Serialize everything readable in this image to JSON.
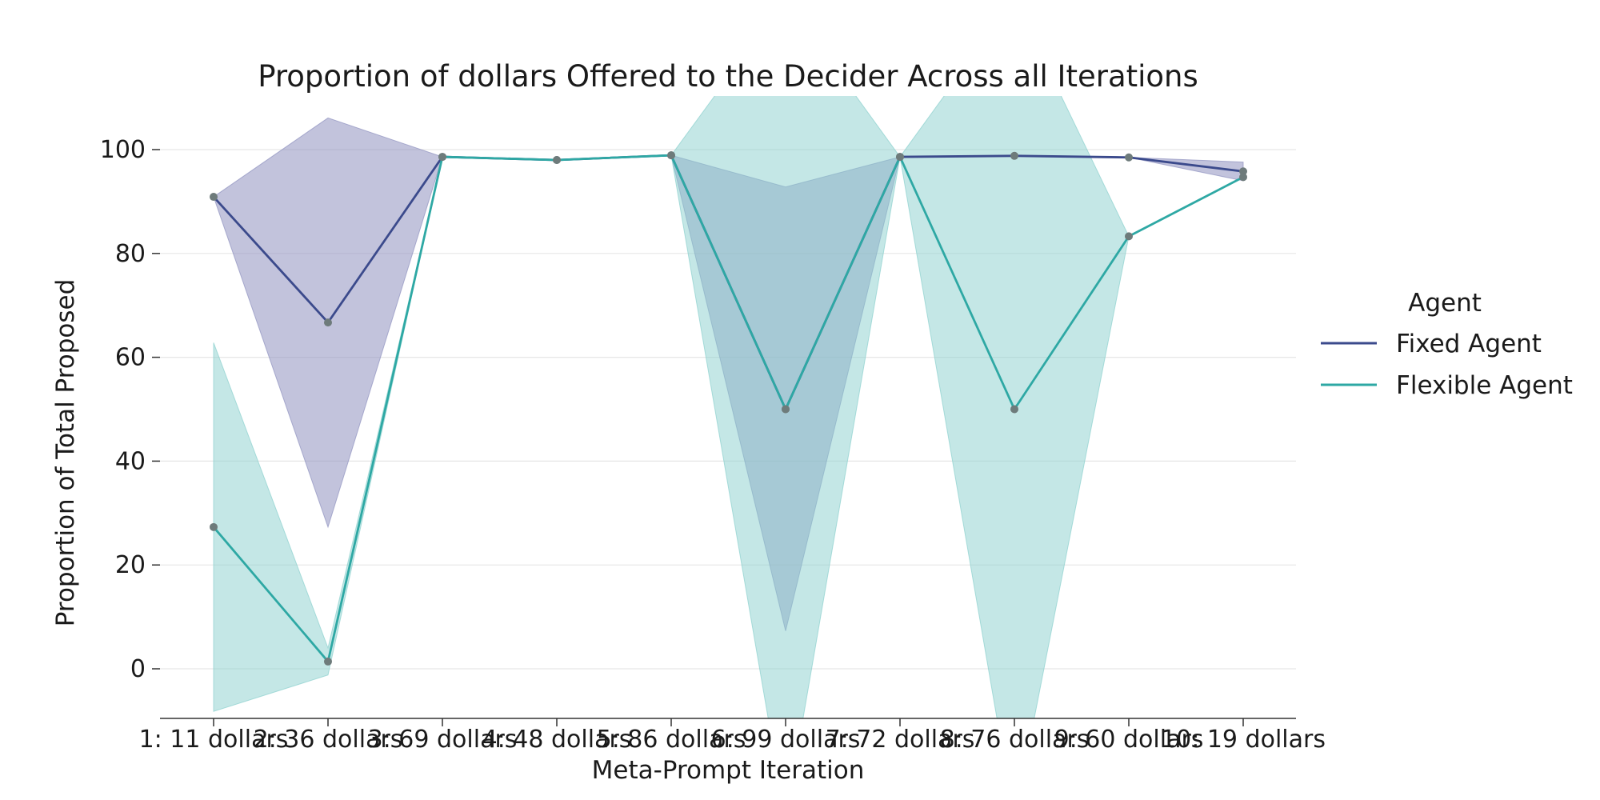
{
  "chart_data": {
    "type": "line",
    "title": "Proportion of dollars Offered to the Decider Across all Iterations",
    "xlabel": "Meta-Prompt Iteration",
    "ylabel": "Proportion of Total Proposed",
    "categories": [
      "1: 11 dollars",
      "2: 36 dollars",
      "3: 69 dollars",
      "4: 48 dollars",
      "5: 86 dollars",
      "6: 99 dollars",
      "7: 72 dollars",
      "8: 76 dollars",
      "9: 60 dollars",
      "10: 19 dollars"
    ],
    "y_ticks": [
      0,
      20,
      40,
      60,
      80,
      100
    ],
    "ylim": [
      -10,
      110
    ],
    "grid": "horizontal",
    "legend": {
      "title": "Agent",
      "placement": "right",
      "entries": [
        "Fixed Agent",
        "Flexible Agent"
      ]
    },
    "series": [
      {
        "name": "Fixed Agent",
        "color": "#3b4a8c",
        "band_color": "#8f91bf",
        "values": [
          90.9,
          66.7,
          98.6,
          98.0,
          98.9,
          50.0,
          98.6,
          98.8,
          98.5,
          95.8
        ],
        "ci_low": [
          90.9,
          27.3,
          98.6,
          98.0,
          98.9,
          7.3,
          98.6,
          98.8,
          98.5,
          94.0
        ],
        "ci_high": [
          90.9,
          106.1,
          98.6,
          98.0,
          98.9,
          92.8,
          98.6,
          98.8,
          98.5,
          97.6
        ]
      },
      {
        "name": "Flexible Agent",
        "color": "#2ea8a4",
        "band_color": "#8ad0cd",
        "values": [
          27.3,
          1.4,
          98.6,
          98.0,
          98.9,
          50.0,
          98.6,
          50.0,
          83.3,
          94.7
        ],
        "ci_low": [
          -8.2,
          -1.2,
          98.6,
          98.0,
          98.9,
          -29.0,
          98.6,
          -29.0,
          83.3,
          94.7
        ],
        "ci_high": [
          62.8,
          4.0,
          98.6,
          98.0,
          98.9,
          129.0,
          98.6,
          129.0,
          83.3,
          94.7
        ]
      }
    ],
    "marker_color": "#6e7b7b"
  }
}
